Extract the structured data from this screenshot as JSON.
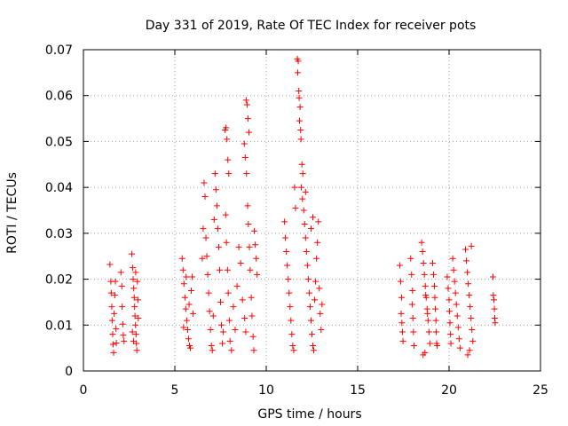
{
  "chart_data": {
    "type": "scatter",
    "title": "Day 331 of 2019, Rate Of TEC Index for receiver pots",
    "xlabel": "GPS time / hours",
    "ylabel": "ROTI / TECUs",
    "xlim": [
      0,
      25
    ],
    "ylim": [
      0,
      0.07
    ],
    "xticks": [
      0,
      5,
      10,
      15,
      20,
      25
    ],
    "xtick_labels": [
      "0",
      "5",
      "10",
      "15",
      "20",
      "25"
    ],
    "yticks": [
      0,
      0.01,
      0.02,
      0.03,
      0.04,
      0.05,
      0.06,
      0.07
    ],
    "ytick_labels": [
      "0",
      "0.01",
      "0.02",
      "0.03",
      "0.04",
      "0.05",
      "0.06",
      "0.07"
    ],
    "grid": true,
    "marker": "+",
    "color": "#ff0000",
    "series": [
      {
        "name": "ROTI",
        "points": [
          [
            1.45,
            0.0232
          ],
          [
            1.5,
            0.0195
          ],
          [
            1.52,
            0.017
          ],
          [
            1.55,
            0.014
          ],
          [
            1.57,
            0.011
          ],
          [
            1.6,
            0.008
          ],
          [
            1.62,
            0.0058
          ],
          [
            1.65,
            0.004
          ],
          [
            1.68,
            0.0125
          ],
          [
            1.72,
            0.0165
          ],
          [
            1.75,
            0.0195
          ],
          [
            1.78,
            0.0092
          ],
          [
            1.8,
            0.0061
          ],
          [
            2.05,
            0.0215
          ],
          [
            2.1,
            0.0185
          ],
          [
            2.12,
            0.014
          ],
          [
            2.15,
            0.0102
          ],
          [
            2.18,
            0.0078
          ],
          [
            2.22,
            0.0065
          ],
          [
            2.65,
            0.0255
          ],
          [
            2.7,
            0.0225
          ],
          [
            2.72,
            0.02
          ],
          [
            2.75,
            0.018
          ],
          [
            2.78,
            0.016
          ],
          [
            2.8,
            0.014
          ],
          [
            2.82,
            0.012
          ],
          [
            2.85,
            0.01
          ],
          [
            2.88,
            0.008
          ],
          [
            2.9,
            0.006
          ],
          [
            2.92,
            0.0045
          ],
          [
            2.95,
            0.0195
          ],
          [
            2.98,
            0.0155
          ],
          [
            3.0,
            0.0115
          ],
          [
            2.68,
            0.0085
          ],
          [
            2.74,
            0.0065
          ],
          [
            2.86,
            0.0215
          ],
          [
            5.4,
            0.0245
          ],
          [
            5.45,
            0.022
          ],
          [
            5.5,
            0.019
          ],
          [
            5.55,
            0.016
          ],
          [
            5.6,
            0.0135
          ],
          [
            5.65,
            0.011
          ],
          [
            5.7,
            0.009
          ],
          [
            5.75,
            0.007
          ],
          [
            5.8,
            0.0055
          ],
          [
            5.85,
            0.005
          ],
          [
            5.9,
            0.0175
          ],
          [
            5.95,
            0.0205
          ],
          [
            6.0,
            0.0125
          ],
          [
            5.48,
            0.0095
          ],
          [
            5.62,
            0.0205
          ],
          [
            5.78,
            0.0145
          ],
          [
            6.5,
            0.0245
          ],
          [
            6.55,
            0.031
          ],
          [
            6.6,
            0.041
          ],
          [
            6.65,
            0.038
          ],
          [
            6.7,
            0.029
          ],
          [
            6.75,
            0.025
          ],
          [
            6.8,
            0.021
          ],
          [
            6.85,
            0.017
          ],
          [
            6.9,
            0.013
          ],
          [
            6.95,
            0.009
          ],
          [
            7.0,
            0.0055
          ],
          [
            7.05,
            0.0045
          ],
          [
            7.1,
            0.012
          ],
          [
            7.15,
            0.033
          ],
          [
            7.2,
            0.043
          ],
          [
            7.25,
            0.0395
          ],
          [
            7.3,
            0.036
          ],
          [
            7.35,
            0.031
          ],
          [
            7.4,
            0.027
          ],
          [
            7.45,
            0.022
          ],
          [
            7.5,
            0.015
          ],
          [
            7.55,
            0.01
          ],
          [
            7.6,
            0.006
          ],
          [
            7.65,
            0.0085
          ],
          [
            7.75,
            0.0525
          ],
          [
            7.8,
            0.053
          ],
          [
            7.85,
            0.0505
          ],
          [
            7.9,
            0.046
          ],
          [
            7.95,
            0.043
          ],
          [
            7.78,
            0.034
          ],
          [
            7.82,
            0.028
          ],
          [
            7.88,
            0.022
          ],
          [
            7.92,
            0.017
          ],
          [
            7.98,
            0.011
          ],
          [
            8.02,
            0.0065
          ],
          [
            8.1,
            0.0045
          ],
          [
            8.2,
            0.014
          ],
          [
            8.3,
            0.009
          ],
          [
            8.4,
            0.0185
          ],
          [
            8.5,
            0.027
          ],
          [
            8.6,
            0.0235
          ],
          [
            8.7,
            0.0155
          ],
          [
            8.8,
            0.0495
          ],
          [
            8.85,
            0.0465
          ],
          [
            8.9,
            0.059
          ],
          [
            8.95,
            0.058
          ],
          [
            9.0,
            0.055
          ],
          [
            9.05,
            0.052
          ],
          [
            8.92,
            0.043
          ],
          [
            8.98,
            0.036
          ],
          [
            9.02,
            0.032
          ],
          [
            9.08,
            0.027
          ],
          [
            9.12,
            0.022
          ],
          [
            9.18,
            0.016
          ],
          [
            9.22,
            0.012
          ],
          [
            9.28,
            0.0075
          ],
          [
            9.32,
            0.0045
          ],
          [
            8.82,
            0.0115
          ],
          [
            8.88,
            0.0085
          ],
          [
            9.35,
            0.0305
          ],
          [
            9.4,
            0.0275
          ],
          [
            9.45,
            0.0245
          ],
          [
            9.5,
            0.021
          ],
          [
            11.0,
            0.0325
          ],
          [
            11.05,
            0.029
          ],
          [
            11.1,
            0.026
          ],
          [
            11.15,
            0.023
          ],
          [
            11.2,
            0.02
          ],
          [
            11.25,
            0.017
          ],
          [
            11.3,
            0.014
          ],
          [
            11.35,
            0.011
          ],
          [
            11.4,
            0.008
          ],
          [
            11.45,
            0.0055
          ],
          [
            11.5,
            0.0045
          ],
          [
            11.55,
            0.04
          ],
          [
            11.6,
            0.0355
          ],
          [
            11.7,
            0.068
          ],
          [
            11.75,
            0.0675
          ],
          [
            11.72,
            0.065
          ],
          [
            11.78,
            0.061
          ],
          [
            11.8,
            0.0595
          ],
          [
            11.85,
            0.0575
          ],
          [
            11.82,
            0.0545
          ],
          [
            11.88,
            0.0525
          ],
          [
            11.9,
            0.0505
          ],
          [
            11.95,
            0.045
          ],
          [
            12.0,
            0.043
          ],
          [
            11.92,
            0.04
          ],
          [
            11.98,
            0.0375
          ],
          [
            12.05,
            0.035
          ],
          [
            12.1,
            0.032
          ],
          [
            12.15,
            0.029
          ],
          [
            12.2,
            0.026
          ],
          [
            12.25,
            0.023
          ],
          [
            12.3,
            0.02
          ],
          [
            12.35,
            0.017
          ],
          [
            12.4,
            0.014
          ],
          [
            12.45,
            0.011
          ],
          [
            12.5,
            0.008
          ],
          [
            12.55,
            0.0055
          ],
          [
            12.6,
            0.0045
          ],
          [
            12.65,
            0.0155
          ],
          [
            12.7,
            0.0195
          ],
          [
            12.75,
            0.0245
          ],
          [
            12.8,
            0.028
          ],
          [
            12.85,
            0.0325
          ],
          [
            12.9,
            0.018
          ],
          [
            12.95,
            0.0125
          ],
          [
            13.0,
            0.009
          ],
          [
            13.05,
            0.0145
          ],
          [
            12.15,
            0.039
          ],
          [
            12.45,
            0.031
          ],
          [
            12.55,
            0.0335
          ],
          [
            17.3,
            0.023
          ],
          [
            17.35,
            0.0195
          ],
          [
            17.4,
            0.016
          ],
          [
            17.38,
            0.0125
          ],
          [
            17.42,
            0.0105
          ],
          [
            17.45,
            0.0085
          ],
          [
            17.48,
            0.0065
          ],
          [
            17.9,
            0.0245
          ],
          [
            17.95,
            0.021
          ],
          [
            18.0,
            0.0175
          ],
          [
            17.98,
            0.0145
          ],
          [
            18.02,
            0.0115
          ],
          [
            18.05,
            0.0085
          ],
          [
            18.08,
            0.0055
          ],
          [
            18.5,
            0.028
          ],
          [
            18.55,
            0.026
          ],
          [
            18.6,
            0.0235
          ],
          [
            18.65,
            0.021
          ],
          [
            18.7,
            0.0185
          ],
          [
            18.75,
            0.016
          ],
          [
            18.8,
            0.0135
          ],
          [
            18.85,
            0.011
          ],
          [
            18.9,
            0.0085
          ],
          [
            18.95,
            0.006
          ],
          [
            18.58,
            0.0035
          ],
          [
            18.68,
            0.004
          ],
          [
            18.82,
            0.0125
          ],
          [
            18.72,
            0.0165
          ],
          [
            19.1,
            0.0235
          ],
          [
            19.15,
            0.021
          ],
          [
            19.2,
            0.0185
          ],
          [
            19.22,
            0.016
          ],
          [
            19.25,
            0.0135
          ],
          [
            19.28,
            0.011
          ],
          [
            19.3,
            0.0085
          ],
          [
            19.32,
            0.006
          ],
          [
            19.35,
            0.0055
          ],
          [
            19.9,
            0.0205
          ],
          [
            19.95,
            0.018
          ],
          [
            20.0,
            0.0155
          ],
          [
            20.02,
            0.013
          ],
          [
            20.05,
            0.0105
          ],
          [
            20.08,
            0.008
          ],
          [
            20.1,
            0.006
          ],
          [
            20.2,
            0.0245
          ],
          [
            20.25,
            0.022
          ],
          [
            20.3,
            0.0195
          ],
          [
            20.35,
            0.017
          ],
          [
            20.4,
            0.0145
          ],
          [
            20.45,
            0.012
          ],
          [
            20.5,
            0.0095
          ],
          [
            20.55,
            0.007
          ],
          [
            20.6,
            0.005
          ],
          [
            20.9,
            0.0265
          ],
          [
            20.95,
            0.024
          ],
          [
            21.0,
            0.0215
          ],
          [
            21.05,
            0.019
          ],
          [
            21.1,
            0.0165
          ],
          [
            21.15,
            0.014
          ],
          [
            21.2,
            0.0115
          ],
          [
            21.25,
            0.009
          ],
          [
            21.3,
            0.0065
          ],
          [
            21.02,
            0.0035
          ],
          [
            21.12,
            0.0045
          ],
          [
            21.22,
            0.0272
          ],
          [
            22.4,
            0.0205
          ],
          [
            22.42,
            0.0165
          ],
          [
            22.45,
            0.0155
          ],
          [
            22.48,
            0.0135
          ],
          [
            22.5,
            0.0115
          ],
          [
            22.52,
            0.0105
          ]
        ]
      }
    ]
  }
}
